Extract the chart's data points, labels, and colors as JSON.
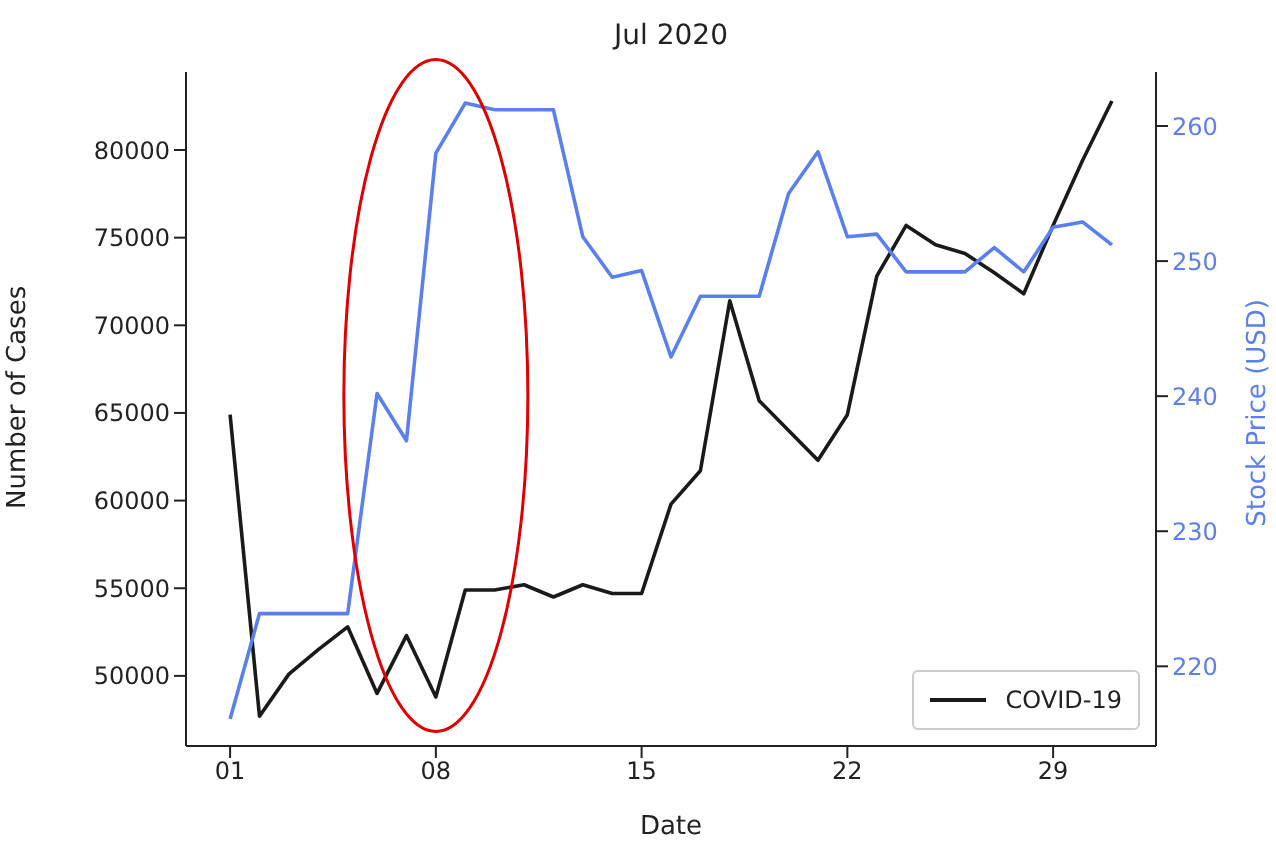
{
  "chart_data": {
    "type": "line",
    "title": "Jul 2020",
    "xlabel": "Date",
    "ylabel": "Number of Cases",
    "y2label": "Stock Price (USD)",
    "x": [
      1,
      2,
      3,
      4,
      5,
      6,
      7,
      8,
      9,
      10,
      11,
      12,
      13,
      14,
      15,
      16,
      17,
      18,
      19,
      20,
      21,
      22,
      23,
      24,
      25,
      26,
      27,
      28,
      29,
      30,
      31
    ],
    "xlim": [
      -0.5,
      32.5
    ],
    "xticks": [
      {
        "value": 1,
        "label": "01"
      },
      {
        "value": 8,
        "label": "08"
      },
      {
        "value": 15,
        "label": "15"
      },
      {
        "value": 22,
        "label": "22"
      },
      {
        "value": 29,
        "label": "29"
      }
    ],
    "ylim": [
      46000,
      84450
    ],
    "yticks": [
      50000,
      55000,
      60000,
      65000,
      70000,
      75000,
      80000
    ],
    "y2lim": [
      214.1,
      264
    ],
    "y2ticks": [
      220,
      230,
      240,
      250,
      260
    ],
    "legend": "bottom right",
    "grid": false,
    "series": [
      {
        "name": "COVID-19",
        "color": "#1a1a1a",
        "values": [
          64900,
          47700,
          50100,
          51500,
          52800,
          49000,
          52300,
          48800,
          54900,
          54900,
          55200,
          54500,
          55200,
          54700,
          54700,
          59800,
          61700,
          71400,
          65700,
          64000,
          62300,
          64900,
          72800,
          75700,
          74600,
          74100,
          73000,
          71800,
          75700,
          79400,
          82800
        ]
      },
      {
        "color": "#5b80ee",
        "axis": "y2",
        "values": [
          216.1,
          223.9,
          223.9,
          223.9,
          223.9,
          240.2,
          236.7,
          258.0,
          261.7,
          261.2,
          261.2,
          261.2,
          251.8,
          248.8,
          249.3,
          242.9,
          247.4,
          247.4,
          247.4,
          255.0,
          258.1,
          251.8,
          252.0,
          249.2,
          249.2,
          249.2,
          251.0,
          249.2,
          252.5,
          252.9,
          251.2
        ]
      }
    ]
  }
}
